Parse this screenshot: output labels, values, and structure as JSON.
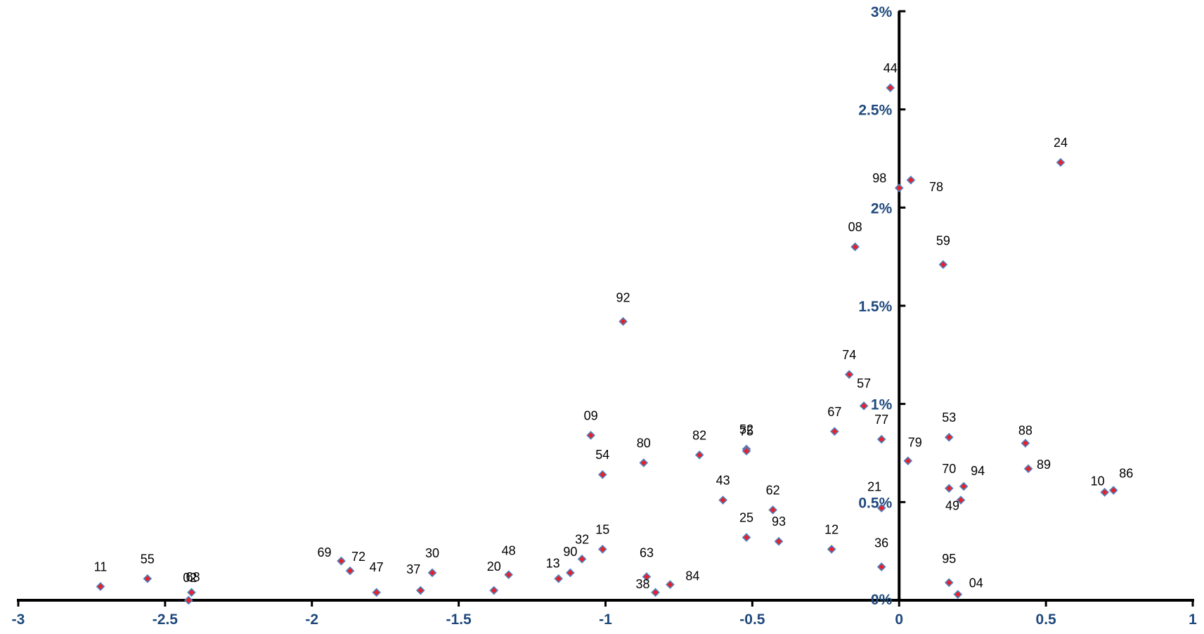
{
  "chart_data": {
    "type": "scatter",
    "title": "",
    "xlabel": "",
    "ylabel": "",
    "xlim": [
      -3,
      1
    ],
    "ylim": [
      0,
      3
    ],
    "x_ticks": [
      "-3",
      "-2.5",
      "-2",
      "-1.5",
      "-1",
      "-0.5",
      "0",
      "0.5",
      "1"
    ],
    "x_tick_values": [
      -3,
      -2.5,
      -2,
      -1.5,
      -1,
      -0.5,
      0,
      0.5,
      1
    ],
    "y_ticks": [
      "0%",
      "0.5%",
      "1%",
      "1.5%",
      "2%",
      "2.5%",
      "3%"
    ],
    "y_tick_values": [
      0,
      0.5,
      1,
      1.5,
      2,
      2.5,
      3
    ],
    "grid": false,
    "legend": "none",
    "marker_fill": "#e8202a",
    "marker_stroke": "#4f81bd",
    "axis_color": "#000000",
    "tick_label_color": "#1f497d",
    "points": [
      {
        "label": "44",
        "x": -0.03,
        "y": 2.61
      },
      {
        "label": "24",
        "x": 0.55,
        "y": 2.23
      },
      {
        "label": "98",
        "x": 0.0,
        "y": 2.1
      },
      {
        "label": "78",
        "x": 0.04,
        "y": 2.14
      },
      {
        "label": "08",
        "x": -0.15,
        "y": 1.8
      },
      {
        "label": "59",
        "x": 0.15,
        "y": 1.71
      },
      {
        "label": "92",
        "x": -0.94,
        "y": 1.42
      },
      {
        "label": "74",
        "x": -0.17,
        "y": 1.15
      },
      {
        "label": "57",
        "x": -0.12,
        "y": 0.99
      },
      {
        "label": "09",
        "x": -1.05,
        "y": 0.84
      },
      {
        "label": "67",
        "x": -0.22,
        "y": 0.86
      },
      {
        "label": "52",
        "x": -0.52,
        "y": 0.77
      },
      {
        "label": "75",
        "x": -0.52,
        "y": 0.76
      },
      {
        "label": "77",
        "x": -0.06,
        "y": 0.82
      },
      {
        "label": "53",
        "x": 0.17,
        "y": 0.83
      },
      {
        "label": "88",
        "x": 0.43,
        "y": 0.8
      },
      {
        "label": "82",
        "x": -0.68,
        "y": 0.74
      },
      {
        "label": "80",
        "x": -0.87,
        "y": 0.7
      },
      {
        "label": "79",
        "x": 0.03,
        "y": 0.71
      },
      {
        "label": "89",
        "x": 0.44,
        "y": 0.67
      },
      {
        "label": "54",
        "x": -1.01,
        "y": 0.64
      },
      {
        "label": "70",
        "x": 0.17,
        "y": 0.57
      },
      {
        "label": "94",
        "x": 0.22,
        "y": 0.58
      },
      {
        "label": "10",
        "x": 0.7,
        "y": 0.55
      },
      {
        "label": "86",
        "x": 0.73,
        "y": 0.56
      },
      {
        "label": "43",
        "x": -0.6,
        "y": 0.51
      },
      {
        "label": "21",
        "x": -0.06,
        "y": 0.47
      },
      {
        "label": "49",
        "x": 0.21,
        "y": 0.51
      },
      {
        "label": "62",
        "x": -0.43,
        "y": 0.46
      },
      {
        "label": "25",
        "x": -0.52,
        "y": 0.32
      },
      {
        "label": "93",
        "x": -0.41,
        "y": 0.3
      },
      {
        "label": "12",
        "x": -0.23,
        "y": 0.26
      },
      {
        "label": "15",
        "x": -1.01,
        "y": 0.26
      },
      {
        "label": "32",
        "x": -1.08,
        "y": 0.21
      },
      {
        "label": "90",
        "x": -1.12,
        "y": 0.14
      },
      {
        "label": "13",
        "x": -1.16,
        "y": 0.11
      },
      {
        "label": "48",
        "x": -1.33,
        "y": 0.13
      },
      {
        "label": "20",
        "x": -1.38,
        "y": 0.05
      },
      {
        "label": "30",
        "x": -1.59,
        "y": 0.14
      },
      {
        "label": "37",
        "x": -1.63,
        "y": 0.05
      },
      {
        "label": "47",
        "x": -1.78,
        "y": 0.04
      },
      {
        "label": "72",
        "x": -1.87,
        "y": 0.15
      },
      {
        "label": "69",
        "x": -1.9,
        "y": 0.2
      },
      {
        "label": "68",
        "x": -2.41,
        "y": 0.04
      },
      {
        "label": "02",
        "x": -2.42,
        "y": 0.0
      },
      {
        "label": "55",
        "x": -2.56,
        "y": 0.11
      },
      {
        "label": "11",
        "x": -2.72,
        "y": 0.07
      },
      {
        "label": "63",
        "x": -0.86,
        "y": 0.12
      },
      {
        "label": "38",
        "x": -0.83,
        "y": 0.04
      },
      {
        "label": "84",
        "x": -0.78,
        "y": 0.08
      },
      {
        "label": "36",
        "x": -0.06,
        "y": 0.17
      },
      {
        "label": "95",
        "x": 0.17,
        "y": 0.09
      },
      {
        "label": "04",
        "x": 0.2,
        "y": 0.03
      }
    ]
  }
}
